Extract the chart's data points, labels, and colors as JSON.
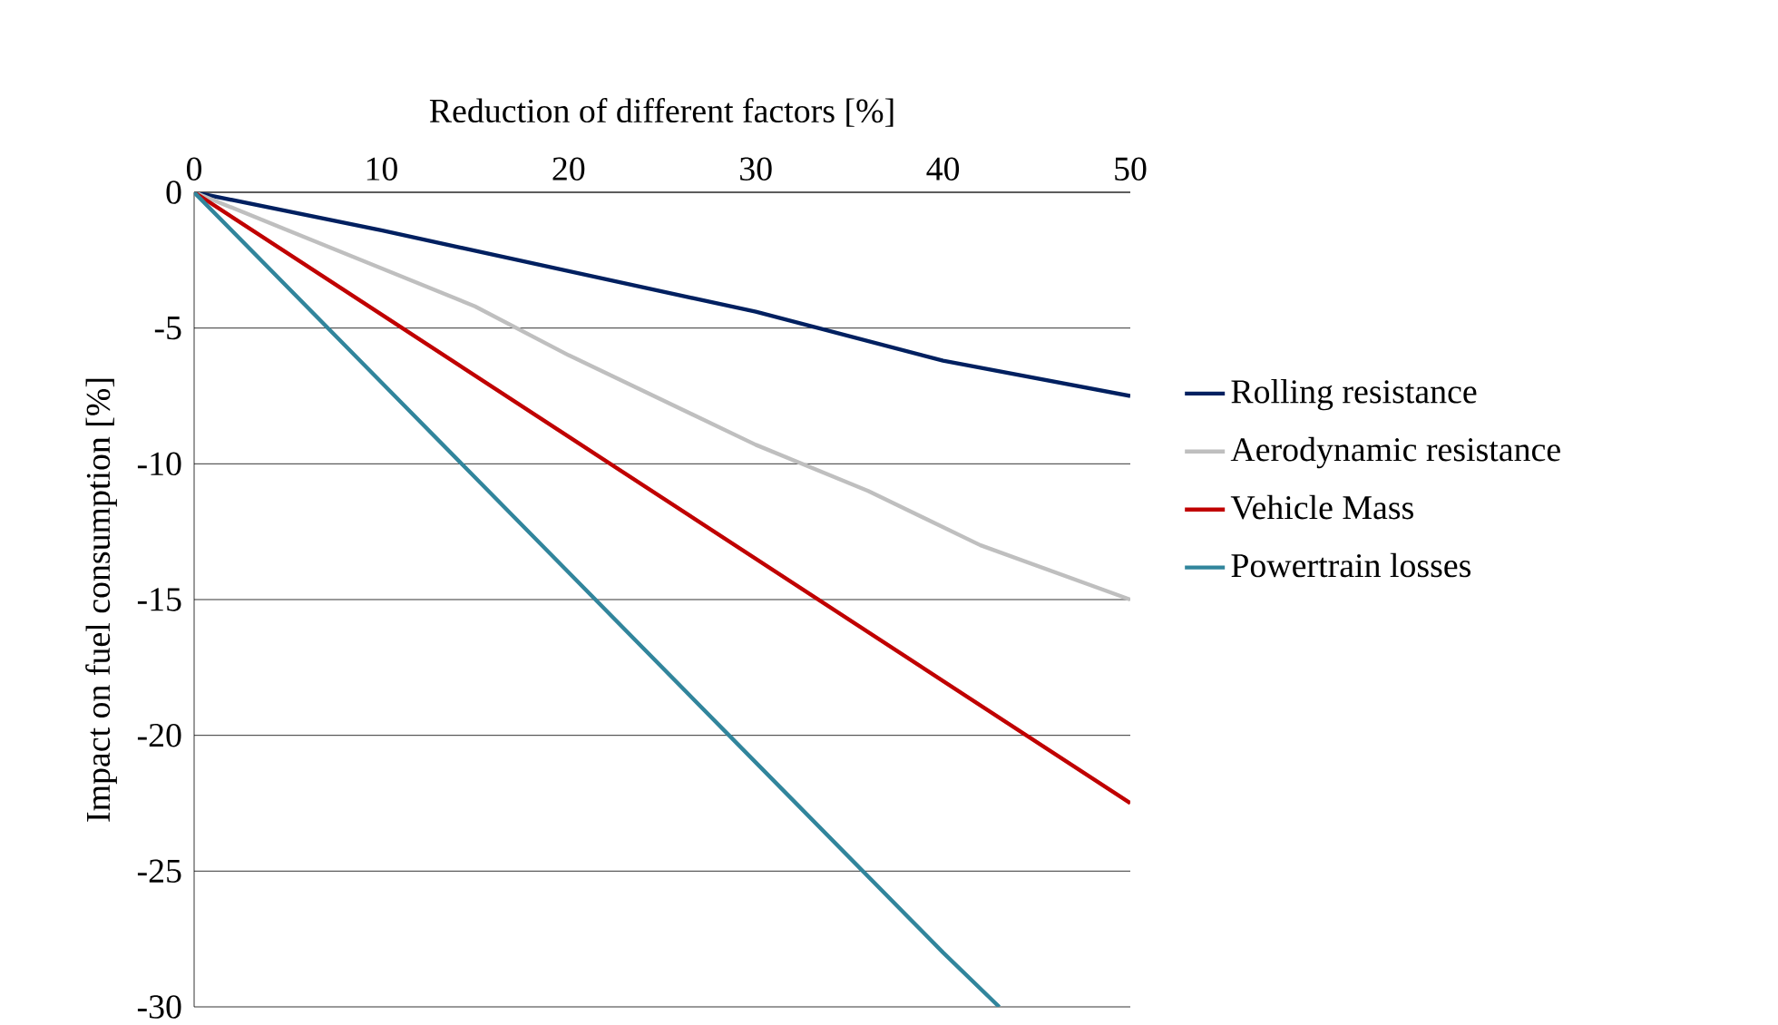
{
  "chart_data": {
    "type": "line",
    "xlabel": "Reduction of different factors [%]",
    "ylabel": "Impact on fuel consumption [%]",
    "xlim": [
      0,
      50
    ],
    "ylim": [
      -30,
      0
    ],
    "xticks": [
      0,
      10,
      20,
      30,
      40,
      50
    ],
    "yticks": [
      -30,
      -25,
      -20,
      -15,
      -10,
      -5,
      0
    ],
    "grid": "y",
    "legend": "right",
    "marker": "none",
    "line_style": "solid",
    "series": [
      {
        "name": "Rolling resistance",
        "color": "#002060",
        "x": [
          0,
          10,
          20,
          30,
          40,
          50
        ],
        "values": [
          0,
          -1.4,
          -2.9,
          -4.4,
          -6.2,
          -7.5
        ]
      },
      {
        "name": "Aerodynamic resistance",
        "color": "#bfbfbf",
        "x": [
          0,
          10,
          15,
          20,
          30,
          36,
          42,
          50
        ],
        "values": [
          0,
          -2.8,
          -4.2,
          -6,
          -9.3,
          -11,
          -13,
          -15
        ]
      },
      {
        "name": "Vehicle Mass",
        "color": "#c00000",
        "x": [
          0,
          10,
          20,
          30,
          40,
          50
        ],
        "values": [
          0,
          -4.5,
          -9,
          -13.5,
          -18,
          -22.5
        ]
      },
      {
        "name": "Powertrain losses",
        "color": "#31859c",
        "x": [
          0,
          10,
          20,
          30,
          40,
          43
        ],
        "values": [
          0,
          -7,
          -14,
          -21,
          -28,
          -30
        ]
      }
    ]
  }
}
